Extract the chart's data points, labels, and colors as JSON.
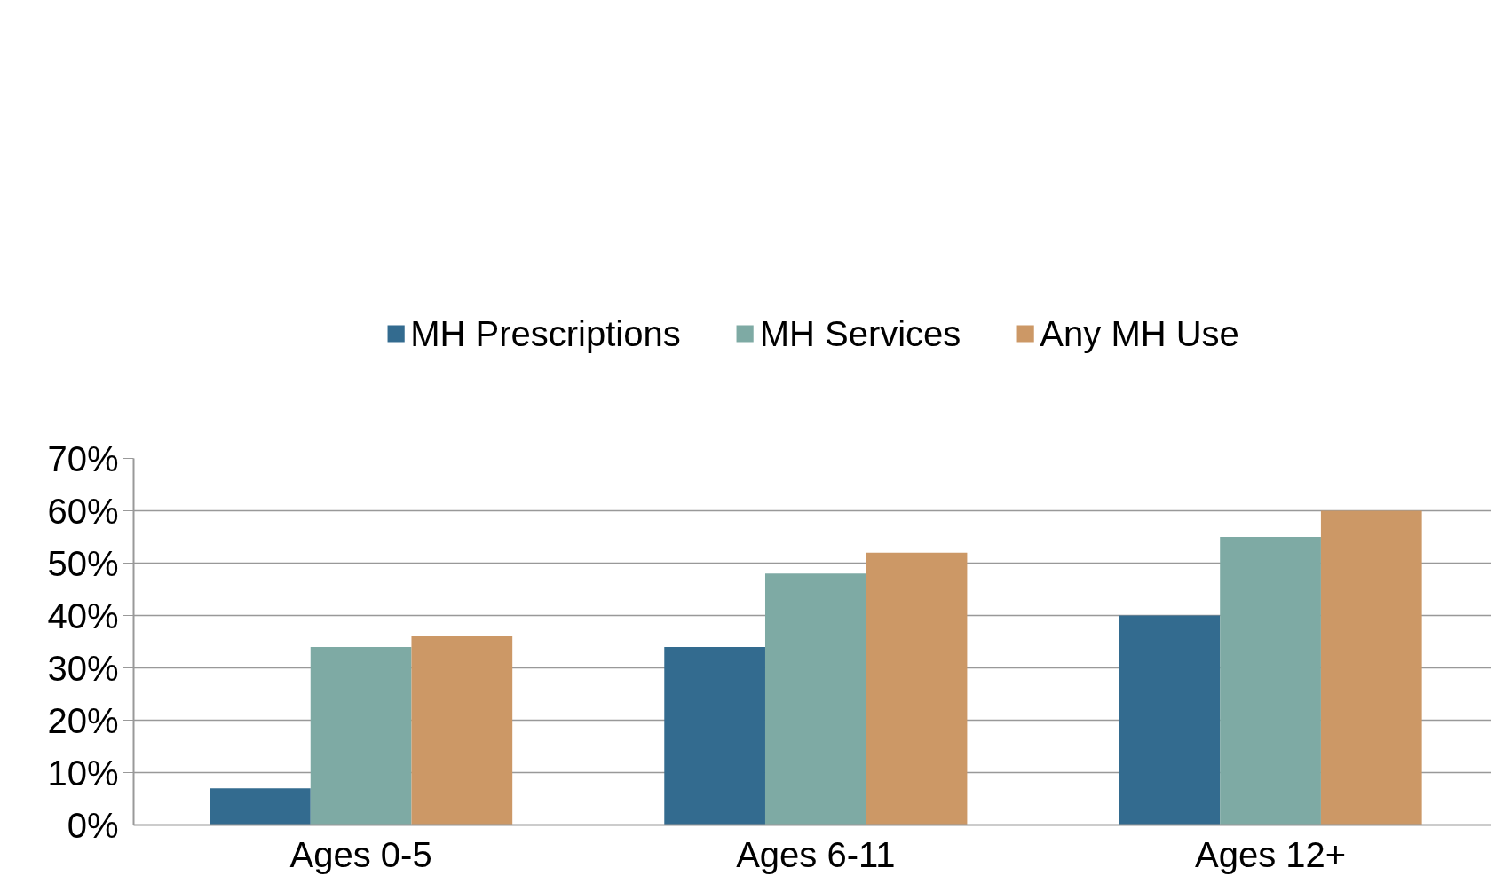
{
  "chart_data": {
    "type": "bar",
    "categories": [
      "Ages 0-5",
      "Ages 6-11",
      "Ages 12+"
    ],
    "series": [
      {
        "name": "MH Prescriptions",
        "color": "#336b8f",
        "values": [
          7,
          34,
          40
        ]
      },
      {
        "name": "MH Services",
        "color": "#7eaaa4",
        "values": [
          34,
          48,
          55
        ]
      },
      {
        "name": "Any MH Use",
        "color": "#cc9866",
        "values": [
          36,
          52,
          60
        ]
      }
    ],
    "ylim": [
      0,
      70
    ],
    "yticks": [
      {
        "value": 0,
        "label": "0%"
      },
      {
        "value": 10,
        "label": "10%"
      },
      {
        "value": 20,
        "label": "20%"
      },
      {
        "value": 30,
        "label": "30%"
      },
      {
        "value": 40,
        "label": "40%"
      },
      {
        "value": 50,
        "label": "50%"
      },
      {
        "value": 60,
        "label": "60%"
      },
      {
        "value": 70,
        "label": "70%"
      }
    ],
    "grid": "y",
    "legend": "top"
  }
}
